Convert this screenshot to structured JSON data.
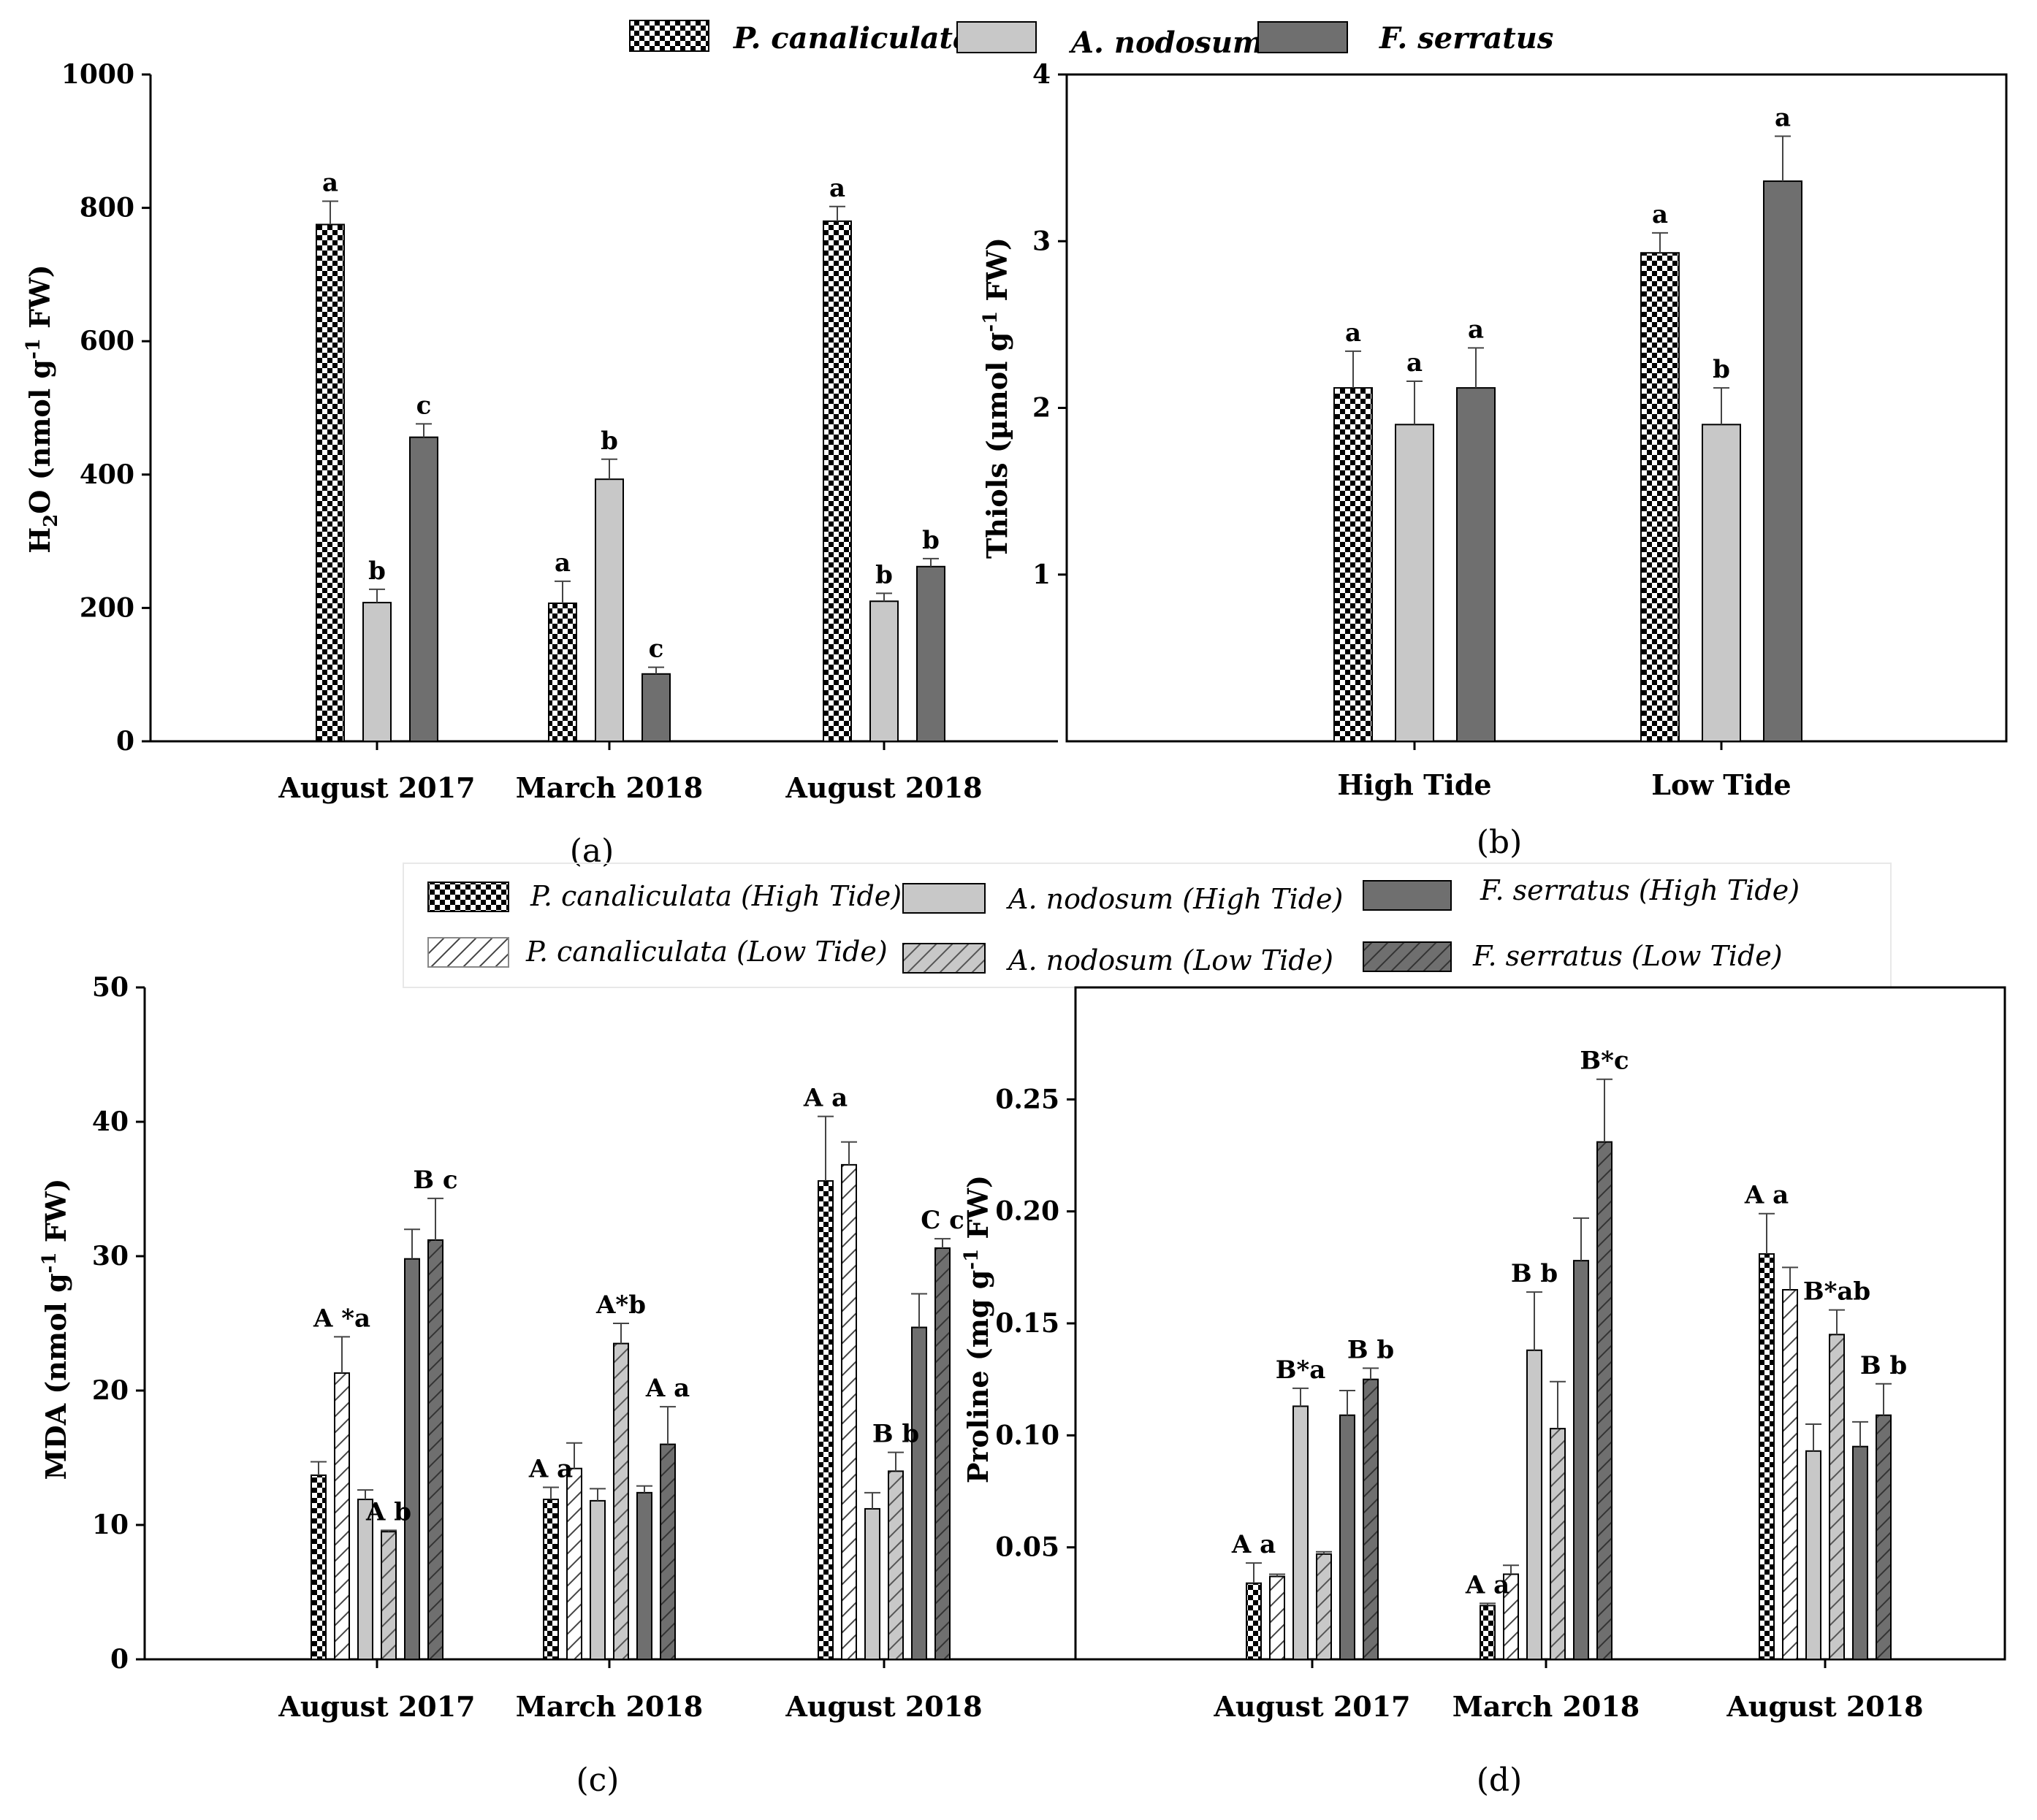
{
  "colors": {
    "p_canaliculata": "#ffffff",
    "a_nodosum": "#c8c8c8",
    "f_serratus": "#6f6f6f",
    "ink": "#000000"
  },
  "legend_top": [
    "P. canaliculata",
    "A. nodosum",
    "F. serratus"
  ],
  "legend_bottom": [
    "P. canaliculata (High Tide)",
    "A. nodosum (High Tide)",
    "F. serratus (High Tide)",
    "P. canaliculata (Low Tide)",
    "A. nodosum (Low Tide)",
    "F. serratus (Low Tide)"
  ],
  "chart_data": [
    {
      "panel": "(a)",
      "type": "bar",
      "ylabel_main": "H",
      "ylabel_sub": "2",
      "ylabel_o": "O",
      "ylabel_rest": " (nmol g",
      "ylabel_sup": "-1",
      "ylabel_end": " FW)",
      "ylim": [
        0,
        1000
      ],
      "yticks": [
        "0",
        "200",
        "400",
        "600",
        "800",
        "1000"
      ],
      "categories": [
        "August 2017",
        "March 2018",
        "August 2018"
      ],
      "series": [
        {
          "name": "P. canaliculata",
          "values": [
            775,
            207,
            780
          ],
          "errors": [
            35,
            33,
            22
          ],
          "letters": [
            "a",
            "a",
            "a"
          ]
        },
        {
          "name": "A. nodosum",
          "values": [
            208,
            393,
            210
          ],
          "errors": [
            20,
            30,
            12
          ],
          "letters": [
            "b",
            "b",
            "b"
          ]
        },
        {
          "name": "F. serratus",
          "values": [
            456,
            101,
            262
          ],
          "errors": [
            20,
            10,
            12
          ],
          "letters": [
            "c",
            "c",
            "b"
          ]
        }
      ]
    },
    {
      "panel": "(b)",
      "type": "bar",
      "ylabel_text": "Thiols (µmol g",
      "ylabel_sup": "-1",
      "ylabel_end": " FW)",
      "ylim": [
        0,
        4
      ],
      "yticks": [
        "1",
        "2",
        "3",
        "4"
      ],
      "categories": [
        "High Tide",
        "Low Tide"
      ],
      "series": [
        {
          "name": "P. canaliculata",
          "values": [
            2.12,
            2.93
          ],
          "errors": [
            0.22,
            0.12
          ],
          "letters": [
            "a",
            "a"
          ]
        },
        {
          "name": "A. nodosum",
          "values": [
            1.9,
            1.9
          ],
          "errors": [
            0.26,
            0.22
          ],
          "letters": [
            "a",
            "b"
          ]
        },
        {
          "name": "F. serratus",
          "values": [
            2.12,
            3.36
          ],
          "errors": [
            0.24,
            0.27
          ],
          "letters": [
            "a",
            "a"
          ]
        }
      ]
    },
    {
      "panel": "(c)",
      "type": "bar",
      "ylabel_text": "MDA (nmol g",
      "ylabel_sup": "-1",
      "ylabel_end": " FW)",
      "ylim": [
        0,
        50
      ],
      "yticks": [
        "0",
        "10",
        "20",
        "30",
        "40",
        "50"
      ],
      "categories": [
        "August 2017",
        "March 2018",
        "August 2018"
      ],
      "series": [
        {
          "name": "P. canaliculata (High Tide)",
          "values": [
            13.7,
            11.9,
            35.6
          ],
          "errors": [
            1.0,
            0.9,
            4.8
          ]
        },
        {
          "name": "P. canaliculata (Low Tide)",
          "values": [
            21.3,
            14.2,
            36.8
          ],
          "errors": [
            2.7,
            1.9,
            1.7
          ]
        },
        {
          "name": "A. nodosum (High Tide)",
          "values": [
            11.9,
            11.8,
            11.2
          ],
          "errors": [
            0.7,
            0.9,
            1.2
          ]
        },
        {
          "name": "A. nodosum (Low Tide)",
          "values": [
            9.5,
            23.5,
            14.0
          ],
          "errors": [
            0.1,
            1.5,
            1.4
          ]
        },
        {
          "name": "F. serratus (High Tide)",
          "values": [
            29.8,
            12.4,
            24.7
          ],
          "errors": [
            2.2,
            0.5,
            2.5
          ]
        },
        {
          "name": "F. serratus (Low Tide)",
          "values": [
            31.2,
            16.0,
            30.6
          ],
          "errors": [
            3.1,
            2.8,
            0.7
          ]
        }
      ],
      "annotations": [
        {
          "text": "A *a",
          "group": 0,
          "series": 1
        },
        {
          "text": "A b",
          "group": 0,
          "series": 3
        },
        {
          "text": "B c",
          "group": 0,
          "series": 5
        },
        {
          "text": "A a",
          "group": 1,
          "series": 0
        },
        {
          "text": "A*b",
          "group": 1,
          "series": 3
        },
        {
          "text": "A a",
          "group": 1,
          "series": 5
        },
        {
          "text": "A a",
          "group": 2,
          "series": 0
        },
        {
          "text": "B b",
          "group": 2,
          "series": 3
        },
        {
          "text": "C c",
          "group": 2,
          "series": 5
        }
      ]
    },
    {
      "panel": "(d)",
      "type": "bar",
      "ylabel_text": "Proline (mg g",
      "ylabel_sup": "-1",
      "ylabel_end": " FW)",
      "ylim": [
        0,
        0.3
      ],
      "yticks": [
        "0.05",
        "0.10",
        "0.15",
        "0.20",
        "0.25"
      ],
      "categories": [
        "August 2017",
        "March 2018",
        "August 2018"
      ],
      "series": [
        {
          "name": "P. canaliculata (High Tide)",
          "values": [
            0.034,
            0.024,
            0.181
          ],
          "errors": [
            0.009,
            0.001,
            0.018
          ]
        },
        {
          "name": "P. canaliculata (Low Tide)",
          "values": [
            0.037,
            0.038,
            0.165
          ],
          "errors": [
            0.001,
            0.004,
            0.01
          ]
        },
        {
          "name": "A. nodosum (High Tide)",
          "values": [
            0.113,
            0.138,
            0.093
          ],
          "errors": [
            0.008,
            0.026,
            0.012
          ]
        },
        {
          "name": "A. nodosum (Low Tide)",
          "values": [
            0.047,
            0.103,
            0.145
          ],
          "errors": [
            0.001,
            0.021,
            0.011
          ]
        },
        {
          "name": "F. serratus (High Tide)",
          "values": [
            0.109,
            0.178,
            0.095
          ],
          "errors": [
            0.011,
            0.019,
            0.011
          ]
        },
        {
          "name": "F. serratus (Low Tide)",
          "values": [
            0.125,
            0.231,
            0.109
          ],
          "errors": [
            0.005,
            0.028,
            0.014
          ]
        }
      ],
      "annotations": [
        {
          "text": "A a",
          "group": 0,
          "series": 0
        },
        {
          "text": "B*a",
          "group": 0,
          "series": 2
        },
        {
          "text": "B b",
          "group": 0,
          "series": 5
        },
        {
          "text": "A a",
          "group": 1,
          "series": 0
        },
        {
          "text": "B b",
          "group": 1,
          "series": 2
        },
        {
          "text": "B*c",
          "group": 1,
          "series": 5
        },
        {
          "text": "A a",
          "group": 2,
          "series": 0
        },
        {
          "text": "B*ab",
          "group": 2,
          "series": 3
        },
        {
          "text": "B b",
          "group": 2,
          "series": 5
        }
      ]
    }
  ]
}
